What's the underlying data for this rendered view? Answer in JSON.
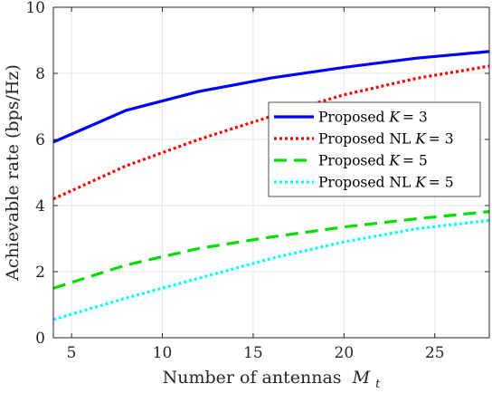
{
  "chart_data": {
    "type": "line",
    "xlabel": "Number of antennas",
    "xlabel_var": "M",
    "xlabel_sub": "t",
    "ylabel": "Achievable rate (bps/Hz)",
    "xlim": [
      4,
      28
    ],
    "ylim": [
      0,
      10
    ],
    "xticks": [
      5,
      10,
      15,
      20,
      25
    ],
    "yticks": [
      0,
      2,
      4,
      6,
      8,
      10
    ],
    "grid": true,
    "legend_position": "center-right",
    "series": [
      {
        "name": "Proposed",
        "math_var": "K",
        "math_val": "= 3",
        "color": "#0000ff",
        "dash": "solid",
        "x": [
          4,
          8,
          12,
          16,
          20,
          24,
          28
        ],
        "y": [
          5.92,
          6.88,
          7.45,
          7.86,
          8.18,
          8.46,
          8.66
        ]
      },
      {
        "name": "Proposed NL",
        "math_var": "K",
        "math_val": "= 3",
        "color": "#ff0000",
        "dash": "dotted",
        "x": [
          4,
          8,
          12,
          16,
          20,
          24,
          28
        ],
        "y": [
          4.2,
          5.2,
          6.0,
          6.7,
          7.35,
          7.85,
          8.22
        ]
      },
      {
        "name": "Proposed",
        "math_var": "K",
        "math_val": "= 5",
        "color": "#00dd00",
        "dash": "dashed",
        "x": [
          4,
          8,
          12,
          16,
          20,
          24,
          28
        ],
        "y": [
          1.5,
          2.2,
          2.7,
          3.05,
          3.35,
          3.6,
          3.82
        ]
      },
      {
        "name": "Proposed NL",
        "math_var": "K",
        "math_val": "= 5",
        "color": "#00ffff",
        "dash": "dotted",
        "x": [
          4,
          8,
          12,
          16,
          20,
          24,
          28
        ],
        "y": [
          0.55,
          1.2,
          1.8,
          2.4,
          2.9,
          3.3,
          3.55
        ]
      }
    ]
  }
}
